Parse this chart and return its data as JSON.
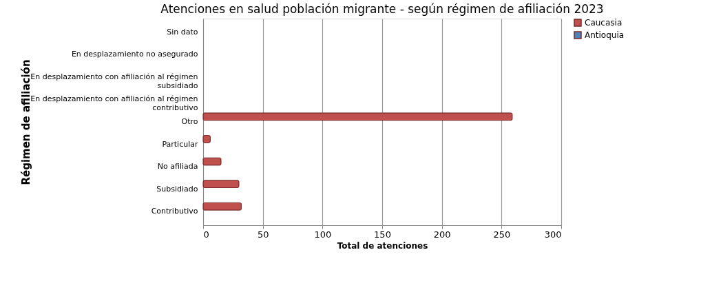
{
  "chart_data": {
    "type": "bar",
    "orientation": "horizontal",
    "title": "Atenciones en salud población migrante - según régimen de afiliación 2023",
    "xlabel": "Total de atenciones",
    "ylabel": "Régimen de afiliación",
    "categories": [
      "Sin dato",
      "En desplazamiento no asegurado",
      "En desplazamiento con afiliación al régimen subsidiado",
      "En desplazamiento con afiliación al régimen contributivo",
      "Otro",
      "Particular",
      "No afiliada",
      "Subsidiado",
      "Contributivo"
    ],
    "series": [
      {
        "name": "Caucasia",
        "color": "#c0504d",
        "values": [
          null,
          null,
          null,
          null,
          259,
          6,
          15,
          30,
          32
        ]
      },
      {
        "name": "Antioquia",
        "color": "#4f81bd",
        "values": [
          null,
          null,
          null,
          null,
          null,
          null,
          null,
          null,
          null
        ]
      }
    ],
    "xlim": [
      0,
      300
    ],
    "xticks": [
      0,
      50,
      100,
      150,
      200,
      250,
      300
    ],
    "grid": "x",
    "legend": "right"
  }
}
